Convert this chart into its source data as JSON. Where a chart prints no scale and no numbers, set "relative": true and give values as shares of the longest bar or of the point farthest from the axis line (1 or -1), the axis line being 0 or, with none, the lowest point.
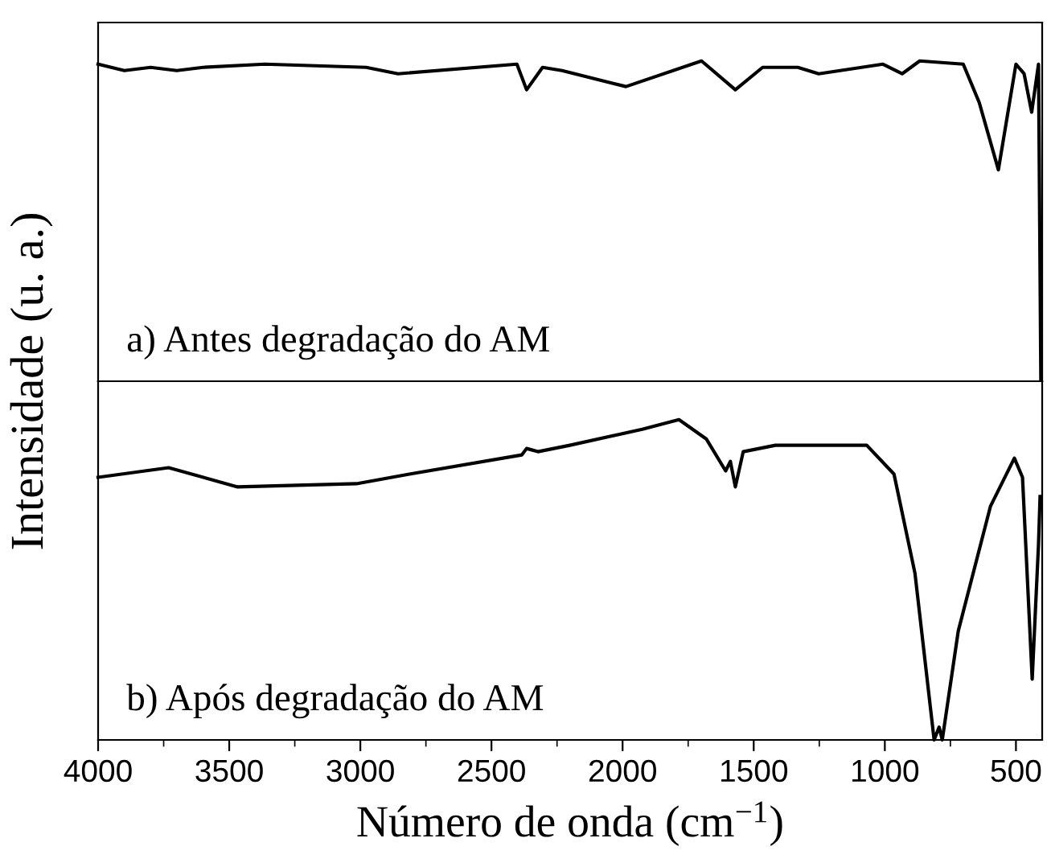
{
  "chart_data": [
    {
      "type": "line",
      "relative": true,
      "ylabel": "Intensidade (u. a.)",
      "xlim": [
        4000,
        400
      ],
      "tick_labels": false,
      "annotations": [
        "a) Antes degradação do AM"
      ],
      "series": [
        {
          "color": "#000000",
          "x": [
            4000,
            3900,
            3800,
            3700,
            3600,
            3364,
            2978,
            2856,
            2403,
            2366,
            2305,
            2231,
            1987,
            1699,
            1570,
            1466,
            1332,
            1252,
            1007,
            934,
            867,
            701,
            640,
            567,
            500,
            469,
            440,
            414,
            405
          ],
          "values": [
            0.99,
            0.97,
            0.98,
            0.97,
            0.98,
            0.99,
            0.98,
            0.96,
            0.99,
            0.91,
            0.98,
            0.97,
            0.92,
            1.0,
            0.91,
            0.98,
            0.98,
            0.96,
            0.99,
            0.96,
            1.0,
            0.99,
            0.87,
            0.66,
            0.99,
            0.96,
            0.84,
            0.99,
            0.0
          ]
        }
      ]
    },
    {
      "type": "line",
      "relative": true,
      "xlabel": "Número de onda (cm$^{−1}$)",
      "xlim": [
        4000,
        400
      ],
      "tick_labels": "x",
      "annotations": [
        "b) Após degradação do AM"
      ],
      "xticks": [
        4000,
        {
          "value": 3750,
          "label": null
        },
        3500,
        {
          "value": 3250,
          "label": null
        },
        3000,
        {
          "value": 2750,
          "label": null
        },
        2500,
        {
          "value": 2250,
          "label": null
        },
        2000,
        {
          "value": 1750,
          "label": null
        },
        1500,
        {
          "value": 1250,
          "label": null
        },
        1000,
        {
          "value": 750,
          "label": null
        },
        500
      ],
      "series": [
        {
          "color": "#000000",
          "x": [
            4000,
            3731,
            3468,
            3015,
            2813,
            2384,
            2366,
            2323,
            2201,
            1925,
            1785,
            1681,
            1607,
            1589,
            1570,
            1540,
            1417,
            1069,
            965,
            885,
            812,
            793,
            781,
            720,
            597,
            506,
            475,
            438,
            414,
            408
          ],
          "values": [
            0.82,
            0.85,
            0.79,
            0.8,
            0.83,
            0.89,
            0.91,
            0.9,
            0.92,
            0.97,
            1.0,
            0.94,
            0.84,
            0.87,
            0.79,
            0.9,
            0.92,
            0.92,
            0.83,
            0.52,
            0.0,
            0.04,
            0.0,
            0.34,
            0.73,
            0.88,
            0.82,
            0.19,
            0.61,
            0.76
          ]
        }
      ]
    }
  ]
}
